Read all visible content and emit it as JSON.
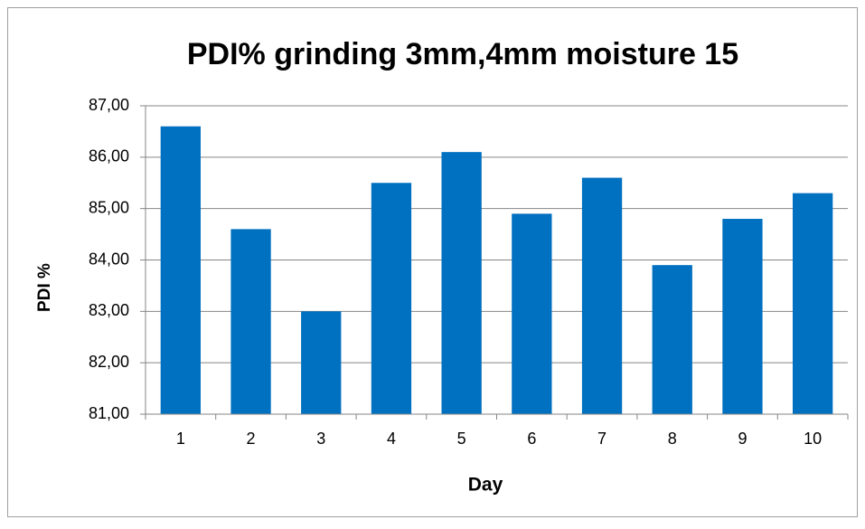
{
  "chart_data": {
    "type": "bar",
    "title": "PDI% grinding 3mm,4mm moisture 15",
    "x_label": "Day",
    "y_label": "PDI %",
    "categories": [
      "1",
      "2",
      "3",
      "4",
      "5",
      "6",
      "7",
      "8",
      "9",
      "10"
    ],
    "values": [
      86.6,
      84.6,
      83.0,
      85.5,
      86.1,
      84.9,
      85.6,
      83.9,
      84.8,
      85.3
    ],
    "color": "#0070c0",
    "ylim": [
      81,
      87
    ],
    "yticks": [
      {
        "value": 81,
        "label": "81,00"
      },
      {
        "value": 82,
        "label": "82,00"
      },
      {
        "value": 83,
        "label": "83,00"
      },
      {
        "value": 84,
        "label": "84,00"
      },
      {
        "value": 85,
        "label": "85,00"
      },
      {
        "value": 86,
        "label": "86,00"
      },
      {
        "value": 87,
        "label": "87,00"
      }
    ],
    "grid": true
  }
}
